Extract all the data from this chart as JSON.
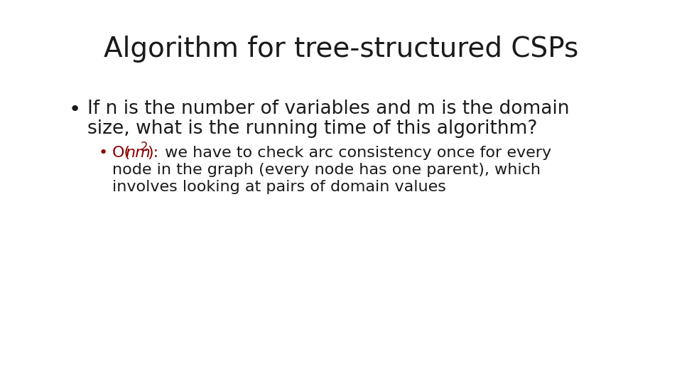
{
  "title": "Algorithm for tree-structured CSPs",
  "title_fontsize": 28,
  "title_color": "#1a1a1a",
  "background_color": "#ffffff",
  "bullet1_line1": "If n is the number of variables and m is the domain",
  "bullet1_line2": "size, what is the running time of this algorithm?",
  "bullet1_fontsize": 19,
  "bullet2_fontsize": 16,
  "bullet2_red_color": "#8b0000",
  "text_color": "#1a1a1a",
  "bullet_color": "#1a1a1a",
  "sub_bullet_color": "#8b0000",
  "body_line1": " we have to check arc consistency once for every",
  "body_line2": "node in the graph (every node has one parent), which",
  "body_line3": "involves looking at pairs of domain values"
}
